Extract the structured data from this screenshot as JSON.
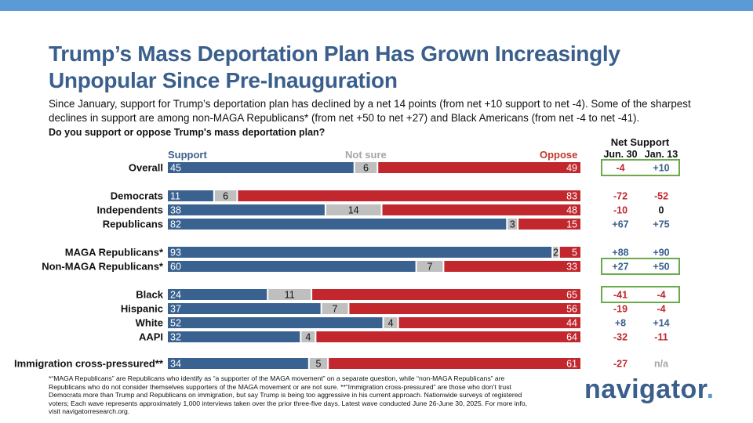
{
  "colors": {
    "support": "#3a6291",
    "not_sure": "#bfbfbf",
    "oppose": "#c1272d",
    "accent": "#5b9bd5",
    "title": "#3a5f8c",
    "box": "#6aaa4a",
    "net_pos": "#3a5f8c",
    "net_neg": "#c1272d",
    "net_zero": "#111111",
    "na": "#a5a5a5"
  },
  "title": "Trump’s Mass Deportation Plan Has Grown Increasingly Unpopular Since Pre-Inauguration",
  "subtitle": "Since January, support for Trump’s deportation plan has declined by a net 14 points (from net +10 support to net -4). Some of the sharpest declines in support are among non-MAGA Republicans* (from net +50 to net +27) and Black Americans (from net -4 to net -41).",
  "question": "Do you support or oppose Trump's mass deportation plan?",
  "net_support_title": "Net Support",
  "footnote": "*“MAGA Republicans” are Republicans who identify as “a supporter of the MAGA movement” on a separate question, while “non-MAGA Republicans” are Republicans who do not consider themselves supporters of the MAGA movement or are not sure. **“Immigration cross-pressured” are those who don’t trust Democrats more than Trump and Republicans on immigration, but say Trump is being too aggressive in his current approach. Nationwide surveys of registered voters; Each wave represents approximately 1,000 interviews taken over the prior three-five days. Latest wave conducted June 26-June 30, 2025. For more info, visit navigatorresearch.org.",
  "logo": {
    "text": "navigator",
    "dot": "."
  },
  "chart_data": {
    "type": "bar",
    "stacked": true,
    "orientation": "horizontal",
    "title": "Do you support or oppose Trump's mass deportation plan?",
    "series_labels": {
      "support": "Support",
      "not_sure": "Not sure",
      "oppose": "Oppose"
    },
    "net_columns": [
      "Jun. 30",
      "Jan. 13"
    ],
    "rows": [
      {
        "label": "Overall",
        "support": 45,
        "not_sure": 6,
        "oppose": 49,
        "net_jun30": "-4",
        "net_jan13": "+10",
        "boxed": true
      },
      {
        "label": "Democrats",
        "support": 11,
        "not_sure": 6,
        "oppose": 83,
        "net_jun30": "-72",
        "net_jan13": "-52",
        "boxed": false
      },
      {
        "label": "Independents",
        "support": 38,
        "not_sure": 14,
        "oppose": 48,
        "net_jun30": "-10",
        "net_jan13": "0",
        "boxed": false
      },
      {
        "label": "Republicans",
        "support": 82,
        "not_sure": 3,
        "oppose": 15,
        "net_jun30": "+67",
        "net_jan13": "+75",
        "boxed": false
      },
      {
        "label": "MAGA Republicans*",
        "support": 93,
        "not_sure": 2,
        "oppose": 5,
        "net_jun30": "+88",
        "net_jan13": "+90",
        "boxed": false
      },
      {
        "label": "Non-MAGA Republicans*",
        "support": 60,
        "not_sure": 7,
        "oppose": 33,
        "net_jun30": "+27",
        "net_jan13": "+50",
        "boxed": true
      },
      {
        "label": "Black",
        "support": 24,
        "not_sure": 11,
        "oppose": 65,
        "net_jun30": "-41",
        "net_jan13": "-4",
        "boxed": true
      },
      {
        "label": "Hispanic",
        "support": 37,
        "not_sure": 7,
        "oppose": 56,
        "net_jun30": "-19",
        "net_jan13": "-4",
        "boxed": false
      },
      {
        "label": "White",
        "support": 52,
        "not_sure": 4,
        "oppose": 44,
        "net_jun30": "+8",
        "net_jan13": "+14",
        "boxed": false
      },
      {
        "label": "AAPI",
        "support": 32,
        "not_sure": 4,
        "oppose": 64,
        "net_jun30": "-32",
        "net_jan13": "-11",
        "boxed": false
      },
      {
        "label": "Immigration cross-pressured**",
        "support": 34,
        "not_sure": 5,
        "oppose": 61,
        "net_jun30": "-27",
        "net_jan13": "n/a",
        "boxed": false
      }
    ]
  }
}
